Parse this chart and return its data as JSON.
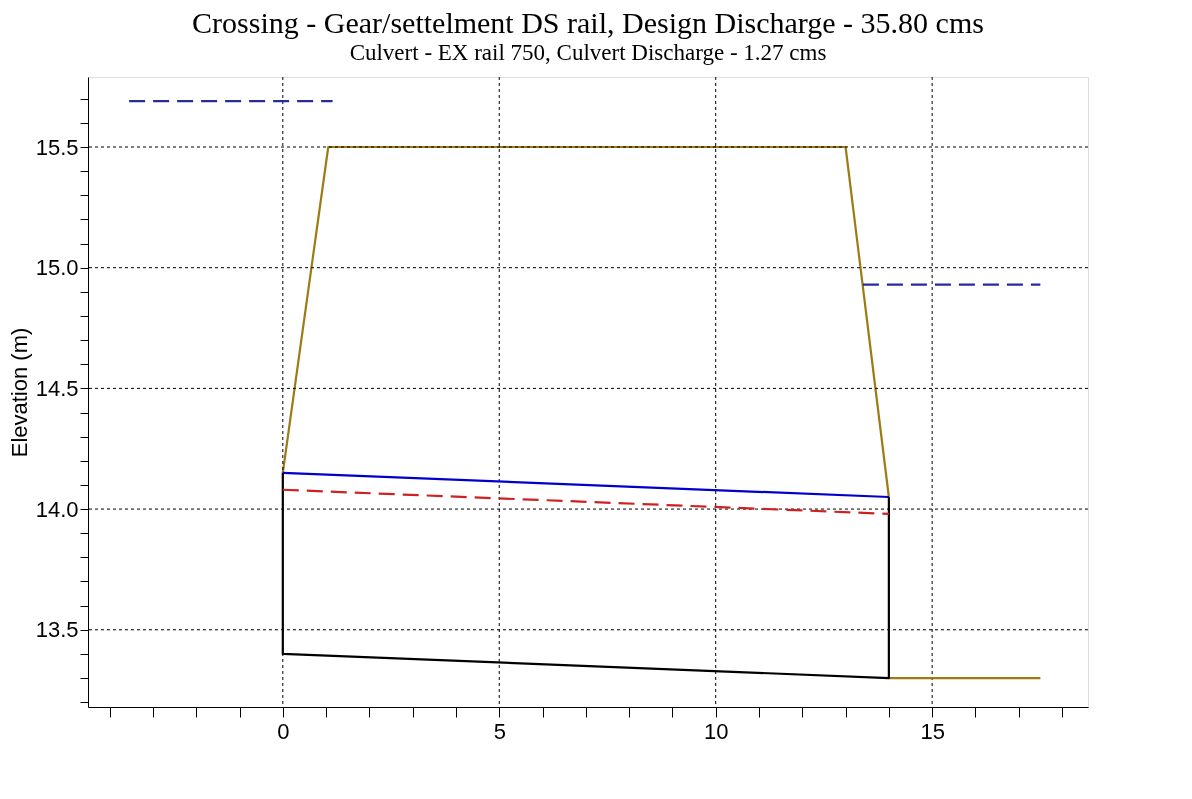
{
  "chart_data": {
    "type": "line",
    "title": "Crossing - Gear/settelment DS rail, Design Discharge - 35.80 cms",
    "subtitle": "Culvert - EX rail 750, Culvert Discharge - 1.27 cms",
    "ylabel": "Elevation (m)",
    "xlim": [
      -4.5,
      18.6
    ],
    "ylim": [
      13.18,
      15.79
    ],
    "xticks": [
      {
        "value": -4,
        "label": null
      },
      {
        "value": -3,
        "label": null
      },
      {
        "value": -2,
        "label": null
      },
      {
        "value": -1,
        "label": null
      },
      0,
      {
        "value": 1,
        "label": null
      },
      {
        "value": 2,
        "label": null
      },
      {
        "value": 3,
        "label": null
      },
      {
        "value": 4,
        "label": null
      },
      5,
      {
        "value": 6,
        "label": null
      },
      {
        "value": 7,
        "label": null
      },
      {
        "value": 8,
        "label": null
      },
      {
        "value": 9,
        "label": null
      },
      10,
      {
        "value": 11,
        "label": null
      },
      {
        "value": 12,
        "label": null
      },
      {
        "value": 13,
        "label": null
      },
      {
        "value": 14,
        "label": null
      },
      15,
      {
        "value": 16,
        "label": null
      },
      {
        "value": 17,
        "label": null
      },
      {
        "value": 18,
        "label": null
      }
    ],
    "yticks": [
      {
        "value": 13.2,
        "label": null
      },
      {
        "value": 13.3,
        "label": null
      },
      {
        "value": 13.4,
        "label": null
      },
      {
        "value": 13.5,
        "label": "13.5"
      },
      {
        "value": 13.6,
        "label": null
      },
      {
        "value": 13.7,
        "label": null
      },
      {
        "value": 13.8,
        "label": null
      },
      {
        "value": 13.9,
        "label": null
      },
      {
        "value": 14.0,
        "label": "14.0"
      },
      {
        "value": 14.1,
        "label": null
      },
      {
        "value": 14.2,
        "label": null
      },
      {
        "value": 14.3,
        "label": null
      },
      {
        "value": 14.4,
        "label": null
      },
      {
        "value": 14.5,
        "label": "14.5"
      },
      {
        "value": 14.6,
        "label": null
      },
      {
        "value": 14.7,
        "label": null
      },
      {
        "value": 14.8,
        "label": null
      },
      {
        "value": 14.9,
        "label": null
      },
      {
        "value": 15.0,
        "label": "15.0"
      },
      {
        "value": 15.1,
        "label": null
      },
      {
        "value": 15.2,
        "label": null
      },
      {
        "value": 15.3,
        "label": null
      },
      {
        "value": 15.4,
        "label": null
      },
      {
        "value": 15.5,
        "label": "15.5"
      },
      {
        "value": 15.6,
        "label": null
      },
      {
        "value": 15.7,
        "label": null
      }
    ],
    "grid": true,
    "series": [
      {
        "color": "#9c7a14",
        "line_style": "solid",
        "x": [
          0,
          1.05,
          13.0,
          14.0
        ],
        "values": [
          14.15,
          15.5,
          15.5,
          14.05
        ]
      },
      {
        "color": "#9c7a14",
        "line_style": "solid",
        "x": [
          14.0,
          17.5
        ],
        "values": [
          13.3,
          13.3
        ]
      },
      {
        "color": "#000000",
        "line_style": "solid",
        "x": [
          0,
          0,
          14.0,
          14.0
        ],
        "values": [
          14.15,
          13.4,
          13.3,
          14.05
        ]
      },
      {
        "color": "#0000cc",
        "line_style": "solid",
        "x": [
          0,
          14.0
        ],
        "values": [
          14.15,
          14.05
        ]
      },
      {
        "color": "#cc2222",
        "line_style": "dashed",
        "x": [
          0,
          14.0
        ],
        "values": [
          14.08,
          13.98
        ]
      },
      {
        "color": "#2a2a9a",
        "line_style": "dashed",
        "x": [
          -3.55,
          1.15
        ],
        "values": [
          15.69,
          15.69
        ]
      },
      {
        "color": "#2a2a9a",
        "line_style": "dashed",
        "x": [
          13.4,
          17.5
        ],
        "values": [
          14.93,
          14.93
        ]
      }
    ]
  }
}
